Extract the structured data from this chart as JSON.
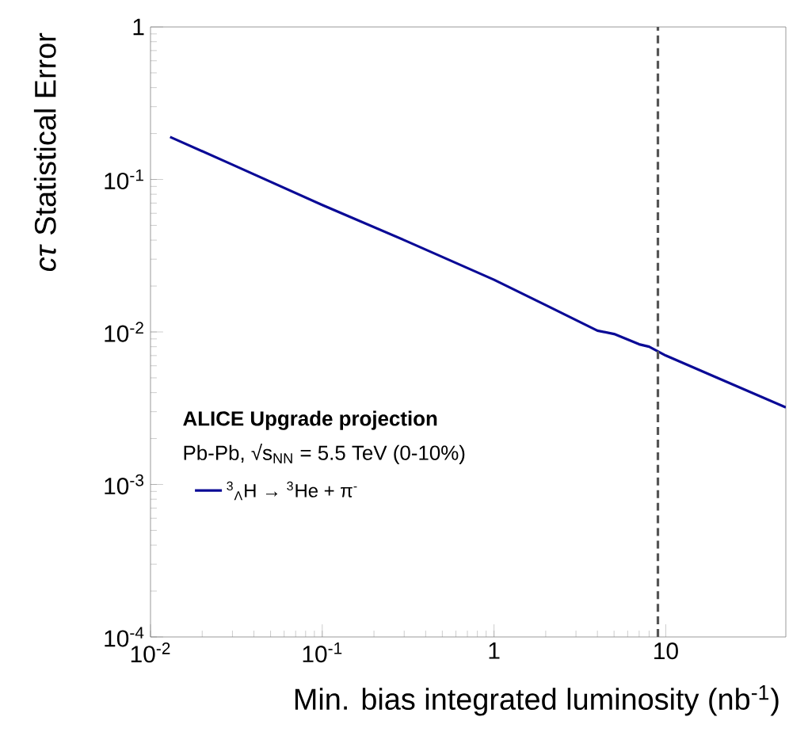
{
  "chart_data": {
    "type": "line",
    "xlabel": "Min. bias integrated luminosity (nb$^{-1}$)",
    "ylabel": "*cτ* Statistical Error",
    "log": "xy",
    "xlim": [
      0.01,
      50
    ],
    "ylim": [
      0.0001,
      1
    ],
    "xticks": [
      {
        "value": 0.01,
        "label": "10$^{-2}$"
      },
      {
        "value": 0.1,
        "label": "10$^{-1}$"
      },
      1,
      10
    ],
    "yticks": [
      {
        "value": 0.0001,
        "label": "10$^{-4}$"
      },
      {
        "value": 0.001,
        "label": "10$^{-3}$"
      },
      {
        "value": 0.01,
        "label": "10$^{-2}$"
      },
      {
        "value": 0.1,
        "label": "10$^{-1}$"
      },
      1
    ],
    "series": [
      {
        "name": "$^{3}$$_{Λ}$H → $^{3}$He + π$^{-}$",
        "color": "#0a0a96",
        "x": [
          0.013,
          0.03,
          0.1,
          0.3,
          1,
          2,
          4,
          5,
          7,
          8,
          10,
          20,
          50
        ],
        "values": [
          0.19,
          0.125,
          0.068,
          0.04,
          0.022,
          0.015,
          0.0102,
          0.0097,
          0.0083,
          0.008,
          0.007,
          0.005,
          0.0032
        ]
      }
    ],
    "ref_lines": [
      {
        "axis": "x",
        "value": 9,
        "color": "#555555",
        "line_style": "dashed"
      }
    ],
    "annotations": [
      "ALICE Upgrade projection",
      "Pb-Pb, √s$_{NN}$ = 5.5 TeV (0-10%)"
    ],
    "legend": "bottom left",
    "grid": false
  }
}
